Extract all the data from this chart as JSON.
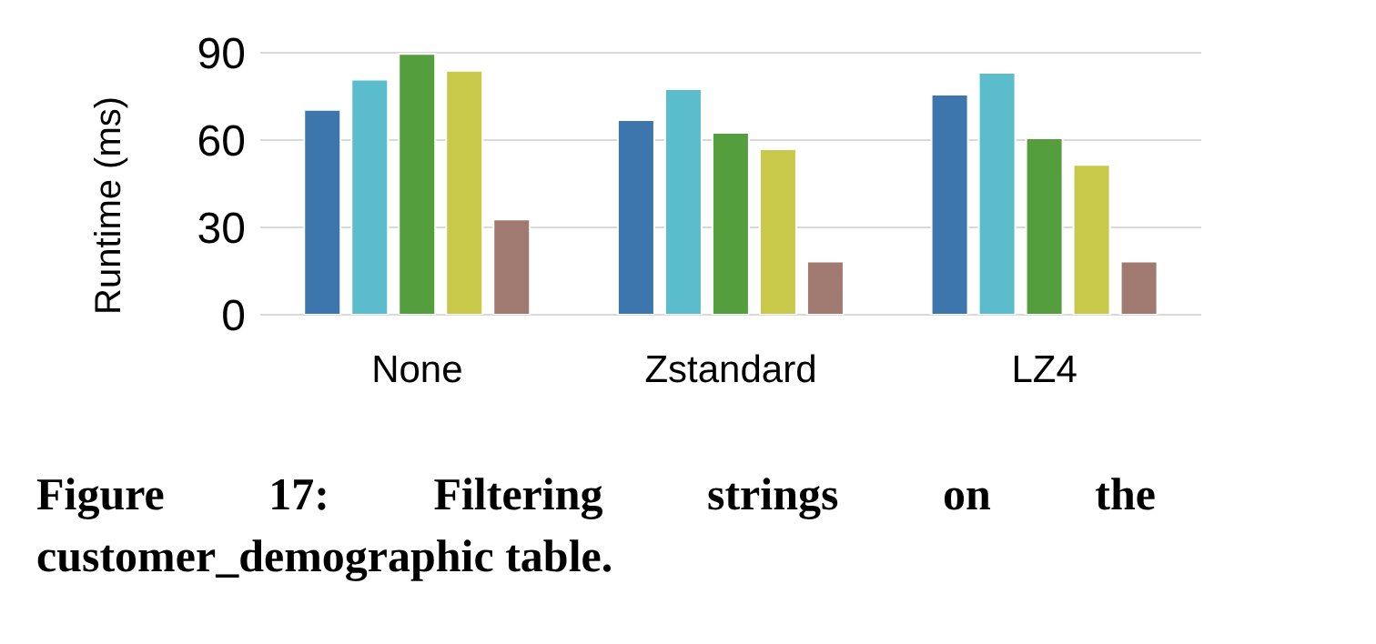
{
  "chart_data": {
    "type": "bar",
    "ylabel": "Runtime (ms)",
    "categories": [
      "None",
      "Zstandard",
      "LZ4"
    ],
    "series": [
      {
        "color": "#3c76ad",
        "values": [
          70.4,
          66.9,
          75.6
        ]
      },
      {
        "color": "#5bbccc",
        "values": [
          80.8,
          77.5,
          83.1
        ]
      },
      {
        "color": "#559e3e",
        "values": [
          89.6,
          62.5,
          60.6
        ]
      },
      {
        "color": "#c8c84a",
        "values": [
          83.8,
          56.9,
          51.5
        ]
      },
      {
        "color": "#a07a70",
        "values": [
          32.7,
          18.3,
          18.3
        ]
      }
    ],
    "ylim": [
      0,
      90
    ],
    "yticks": [
      0,
      30,
      60,
      90
    ],
    "grid": "y",
    "annotations": [
      "Figure 17: Filtering strings on the customer_demographic table."
    ]
  }
}
